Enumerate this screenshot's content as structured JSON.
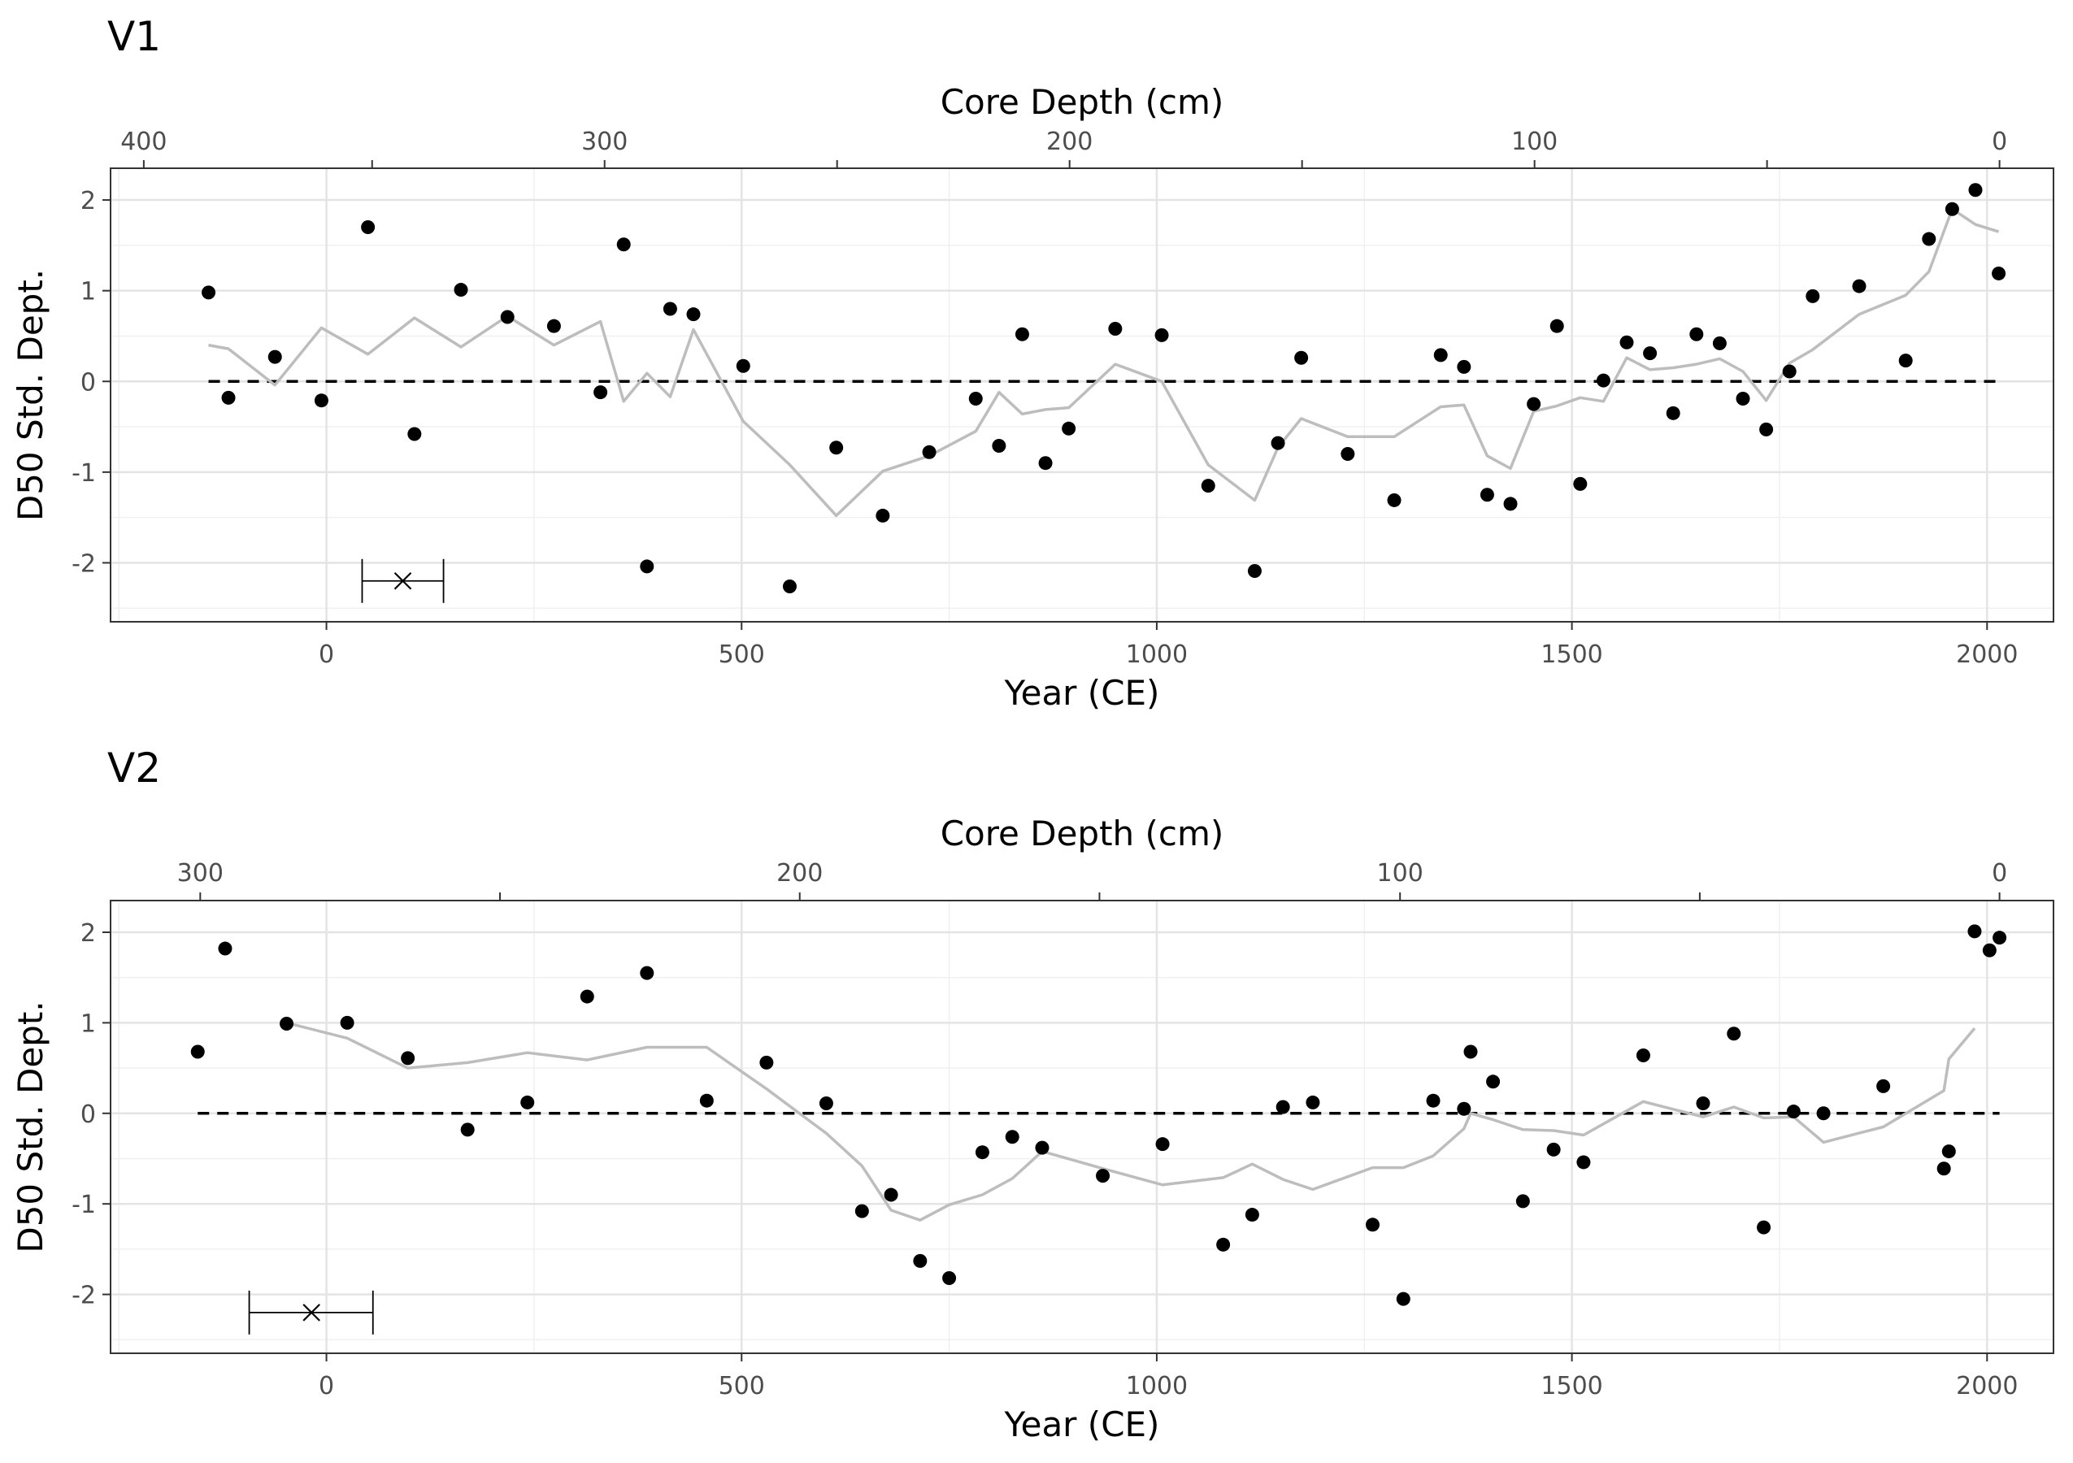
{
  "chart_data": [
    {
      "type": "scatter",
      "title": "V1",
      "xlabel": "Year (CE)",
      "ylabel": "D50 Std. Dept.",
      "secondary_xlabel": "Core Depth (cm)",
      "xlim": [
        -260,
        2080
      ],
      "ylim": [
        -2.65,
        2.35
      ],
      "x_ticks": [
        0,
        500,
        1000,
        1500,
        2000
      ],
      "y_ticks": [
        -2,
        -1,
        0,
        1,
        2
      ],
      "depth_ticks": [
        400,
        300,
        200,
        100,
        0
      ],
      "depth_tick_years": [
        -220,
        335,
        895,
        1455,
        2015
      ],
      "depth_minor_tick_years": [
        55,
        615,
        1175,
        1735
      ],
      "grid": true,
      "legend": "none",
      "reference_line_y": 0,
      "error_bar": {
        "x": 92,
        "y": -2.2,
        "xmin": 43,
        "xmax": 141
      },
      "series": [
        {
          "type": "points",
          "x": [
            -142,
            -118,
            -62,
            -6,
            50,
            106,
            162,
            218,
            274,
            330,
            358,
            386,
            414,
            442,
            502,
            558,
            614,
            670,
            726,
            782,
            810,
            838,
            866,
            894,
            950,
            1006,
            1062,
            1118,
            1146,
            1174,
            1230,
            1286,
            1342,
            1370,
            1398,
            1426,
            1454,
            1482,
            1510,
            1538,
            1566,
            1594,
            1622,
            1650,
            1678,
            1706,
            1734,
            1762,
            1790,
            1846,
            1902,
            1930,
            1958,
            1986,
            2014
          ],
          "y": [
            0.98,
            -0.18,
            0.27,
            -0.21,
            1.7,
            -0.58,
            1.01,
            0.71,
            0.61,
            -0.12,
            1.51,
            -2.04,
            0.8,
            0.74,
            0.17,
            -2.26,
            -0.73,
            -1.48,
            -0.78,
            -0.19,
            -0.71,
            0.52,
            -0.9,
            -0.52,
            0.58,
            0.51,
            -1.15,
            -2.09,
            -0.68,
            0.26,
            -0.8,
            -1.31,
            0.29,
            0.16,
            -1.25,
            -1.35,
            -0.25,
            0.61,
            -1.13,
            0.01,
            0.43,
            0.31,
            -0.35,
            0.52,
            0.42,
            -0.19,
            -0.53,
            0.11,
            0.94,
            1.05,
            0.23,
            1.57,
            1.9,
            2.11,
            1.19
          ]
        },
        {
          "type": "smooth_line",
          "x": [
            -142,
            -118,
            -62,
            -6,
            50,
            106,
            162,
            218,
            274,
            330,
            358,
            386,
            414,
            442,
            502,
            558,
            614,
            670,
            726,
            782,
            810,
            838,
            866,
            894,
            950,
            1006,
            1062,
            1118,
            1146,
            1174,
            1230,
            1286,
            1342,
            1370,
            1398,
            1426,
            1454,
            1482,
            1510,
            1538,
            1566,
            1594,
            1622,
            1650,
            1678,
            1706,
            1734,
            1762,
            1790,
            1846,
            1902,
            1930,
            1958,
            1986,
            2014
          ],
          "y": [
            0.4,
            0.36,
            -0.04,
            0.59,
            0.3,
            0.7,
            0.38,
            0.72,
            0.4,
            0.66,
            -0.22,
            0.09,
            -0.17,
            0.57,
            -0.44,
            -0.92,
            -1.48,
            -0.99,
            -0.82,
            -0.55,
            -0.12,
            -0.36,
            -0.31,
            -0.29,
            0.19,
            0.0,
            -0.92,
            -1.31,
            -0.73,
            -0.41,
            -0.61,
            -0.61,
            -0.28,
            -0.26,
            -0.82,
            -0.96,
            -0.33,
            -0.27,
            -0.18,
            -0.22,
            0.26,
            0.13,
            0.15,
            0.19,
            0.25,
            0.11,
            -0.21,
            0.2,
            0.35,
            0.74,
            0.95,
            1.21,
            1.9,
            1.73,
            1.65
          ]
        }
      ]
    },
    {
      "type": "scatter",
      "title": "V2",
      "xlabel": "Year (CE)",
      "ylabel": "D50 Std. Dept.",
      "secondary_xlabel": "Core Depth (cm)",
      "xlim": [
        -260,
        2080
      ],
      "ylim": [
        -2.65,
        2.35
      ],
      "x_ticks": [
        0,
        500,
        1000,
        1500,
        2000
      ],
      "y_ticks": [
        -2,
        -1,
        0,
        1,
        2
      ],
      "depth_ticks": [
        300,
        200,
        100,
        0
      ],
      "depth_tick_years": [
        -152,
        570,
        1293,
        2015
      ],
      "depth_minor_tick_years": [
        209,
        931,
        1654
      ],
      "grid": true,
      "legend": "none",
      "reference_line_y": 0,
      "error_bar": {
        "x": -18,
        "y": -2.2,
        "xmin": -93,
        "xmax": 56
      },
      "series": [
        {
          "type": "points",
          "x": [
            -155,
            -122,
            -48,
            25,
            98,
            170,
            242,
            314,
            386,
            458,
            530,
            602,
            645,
            680,
            715,
            750,
            790,
            826,
            862,
            935,
            1007,
            1080,
            1115,
            1152,
            1188,
            1260,
            1297,
            1333,
            1370,
            1378,
            1405,
            1441,
            1478,
            1514,
            1586,
            1658,
            1695,
            1731,
            1767,
            1803,
            1875,
            1948,
            1954,
            1985,
            2003,
            2015
          ],
          "y": [
            0.68,
            1.82,
            0.99,
            1.0,
            0.61,
            -0.18,
            0.12,
            1.29,
            1.55,
            0.14,
            0.56,
            0.11,
            -1.08,
            -0.9,
            -1.63,
            -1.82,
            -0.43,
            -0.26,
            -0.38,
            -0.69,
            -0.34,
            -1.45,
            -1.12,
            0.07,
            0.12,
            -1.23,
            -2.05,
            0.14,
            0.05,
            0.68,
            0.35,
            -0.97,
            -0.4,
            -0.54,
            0.64,
            0.11,
            0.88,
            -1.26,
            0.02,
            0.0,
            0.3,
            -0.61,
            -0.42,
            2.01,
            1.8,
            1.94
          ]
        },
        {
          "type": "smooth_line",
          "x": [
            -48,
            25,
            98,
            170,
            242,
            314,
            386,
            458,
            530,
            602,
            645,
            680,
            715,
            750,
            790,
            826,
            862,
            935,
            1007,
            1080,
            1115,
            1152,
            1188,
            1260,
            1297,
            1333,
            1370,
            1378,
            1405,
            1441,
            1478,
            1514,
            1586,
            1658,
            1695,
            1731,
            1767,
            1803,
            1875,
            1948,
            1954,
            1985
          ],
          "y": [
            1.0,
            0.83,
            0.5,
            0.56,
            0.67,
            0.59,
            0.73,
            0.73,
            0.27,
            -0.22,
            -0.58,
            -1.07,
            -1.18,
            -1.01,
            -0.9,
            -0.72,
            -0.42,
            -0.61,
            -0.79,
            -0.71,
            -0.56,
            -0.73,
            -0.84,
            -0.6,
            -0.6,
            -0.47,
            -0.17,
            0.0,
            -0.07,
            -0.18,
            -0.19,
            -0.24,
            0.13,
            -0.04,
            0.07,
            -0.05,
            -0.04,
            -0.32,
            -0.15,
            0.25,
            0.6,
            0.94
          ]
        }
      ]
    }
  ]
}
